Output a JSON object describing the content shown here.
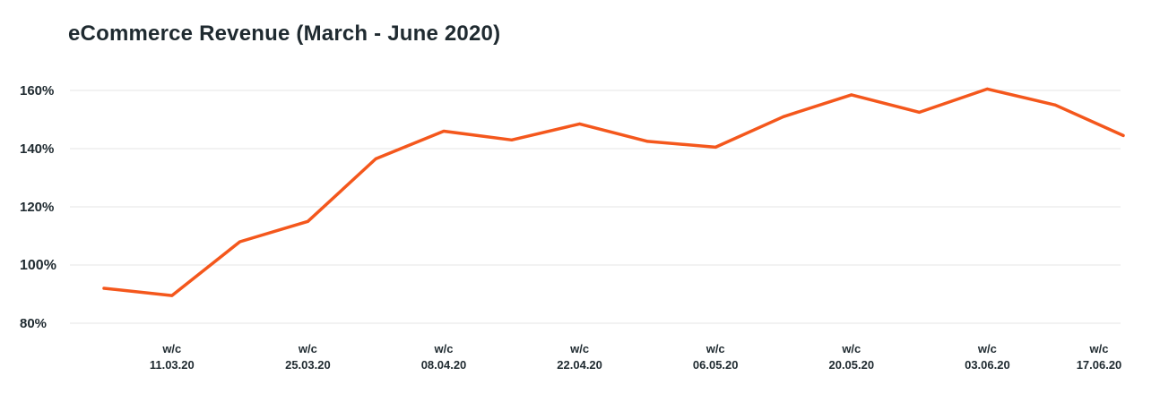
{
  "title": "eCommerce Revenue (March - June 2020)",
  "chart_data": {
    "type": "line",
    "title": "eCommerce Revenue (March - June 2020)",
    "xlabel": "",
    "ylabel": "",
    "ylim": [
      70,
      170
    ],
    "y_ticks": [
      "80%",
      "100%",
      "120%",
      "140%",
      "160%"
    ],
    "y_tick_values": [
      80,
      100,
      120,
      140,
      160
    ],
    "grid": true,
    "legend": "none",
    "color": "#f4571c",
    "x_tick_labels": [
      {
        "line1": "w/c",
        "line2": "11.03.20"
      },
      {
        "line1": "w/c",
        "line2": "25.03.20"
      },
      {
        "line1": "w/c",
        "line2": "08.04.20"
      },
      {
        "line1": "w/c",
        "line2": "22.04.20"
      },
      {
        "line1": "w/c",
        "line2": "06.05.20"
      },
      {
        "line1": "w/c",
        "line2": "20.05.20"
      },
      {
        "line1": "w/c",
        "line2": "03.06.20"
      },
      {
        "line1": "w/c",
        "line2": "17.06.20"
      }
    ],
    "x": [
      "04.03.20",
      "11.03.20",
      "18.03.20",
      "25.03.20",
      "01.04.20",
      "08.04.20",
      "15.04.20",
      "22.04.20",
      "29.04.20",
      "06.05.20",
      "13.05.20",
      "20.05.20",
      "27.05.20",
      "03.06.20",
      "10.06.20",
      "17.06.20"
    ],
    "series": [
      {
        "values": [
          92,
          89.5,
          108,
          115,
          136.5,
          146,
          143,
          148.5,
          142.5,
          140.5,
          151,
          158.5,
          152.5,
          160.5,
          155,
          144.5
        ]
      }
    ]
  }
}
